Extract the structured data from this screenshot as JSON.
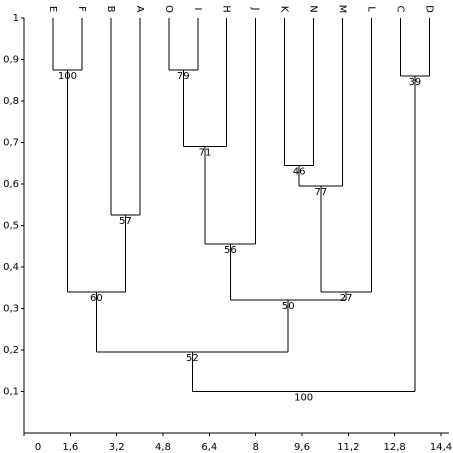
{
  "chart_data": {
    "type": "dendrogram",
    "leaves": [
      "E",
      "F",
      "B",
      "A",
      "O",
      "I",
      "H",
      "J",
      "K",
      "N",
      "M",
      "L",
      "C",
      "D"
    ],
    "merges": [
      {
        "left": [
          "E"
        ],
        "right": [
          "F"
        ],
        "height": 0.875,
        "label": 100
      },
      {
        "left": [
          "B"
        ],
        "right": [
          "A"
        ],
        "height": 0.525,
        "label": 57
      },
      {
        "left": [
          "O"
        ],
        "right": [
          "I"
        ],
        "height": 0.875,
        "label": 79
      },
      {
        "left": [
          "O",
          "I"
        ],
        "right": [
          "H"
        ],
        "height": 0.69,
        "label": 71
      },
      {
        "left": [
          "O",
          "I",
          "H"
        ],
        "right": [
          "J"
        ],
        "height": 0.455,
        "label": 56
      },
      {
        "left": [
          "K"
        ],
        "right": [
          "N"
        ],
        "height": 0.645,
        "label": 46
      },
      {
        "left": [
          "K",
          "N"
        ],
        "right": [
          "M"
        ],
        "height": 0.595,
        "label": 77
      },
      {
        "left": [
          "K",
          "N",
          "M"
        ],
        "right": [
          "L"
        ],
        "height": 0.34,
        "label": 27
      },
      {
        "left": [
          "C"
        ],
        "right": [
          "D"
        ],
        "height": 0.86,
        "label": 39
      },
      {
        "left": [
          "E",
          "F"
        ],
        "right": [
          "B",
          "A"
        ],
        "height": 0.34,
        "label": 60
      },
      {
        "left": [
          "O",
          "I",
          "H",
          "J"
        ],
        "right": [
          "K",
          "N",
          "M",
          "L"
        ],
        "height": 0.32,
        "label": 50
      },
      {
        "left": [
          "E",
          "F",
          "B",
          "A"
        ],
        "right": [
          "O",
          "I",
          "H",
          "J",
          "K",
          "N",
          "M",
          "L"
        ],
        "height": 0.195,
        "label": 52
      },
      {
        "left": [
          "E",
          "F",
          "B",
          "A",
          "O",
          "I",
          "H",
          "J",
          "K",
          "N",
          "M",
          "L"
        ],
        "right": [
          "C",
          "D"
        ],
        "height": 0.1,
        "label": 100
      }
    ],
    "xlim": [
      0,
      14.4
    ],
    "xticks": [
      0,
      {
        "value": 1.6,
        "label": "1,6"
      },
      {
        "value": 3.2,
        "label": "3,2"
      },
      {
        "value": 4.8,
        "label": "4,8"
      },
      {
        "value": 6.4,
        "label": "6,4"
      },
      8,
      {
        "value": 9.6,
        "label": "9,6"
      },
      {
        "value": 11.2,
        "label": "11,2"
      },
      {
        "value": 12.8,
        "label": "12,8"
      },
      {
        "value": 14.4,
        "label": "14,4"
      }
    ],
    "ylim": [
      0,
      1
    ],
    "yticks": [
      {
        "value": 0.1,
        "label": "0,1"
      },
      {
        "value": 0.2,
        "label": "0,2"
      },
      {
        "value": 0.3,
        "label": "0,3"
      },
      {
        "value": 0.4,
        "label": "0,4"
      },
      {
        "value": 0.5,
        "label": "0,5"
      },
      {
        "value": 0.6,
        "label": "0,6"
      },
      {
        "value": 0.7,
        "label": "0,7"
      },
      {
        "value": 0.8,
        "label": "0,8"
      },
      {
        "value": 0.9,
        "label": "0,9"
      },
      1
    ],
    "color": "#000000"
  }
}
